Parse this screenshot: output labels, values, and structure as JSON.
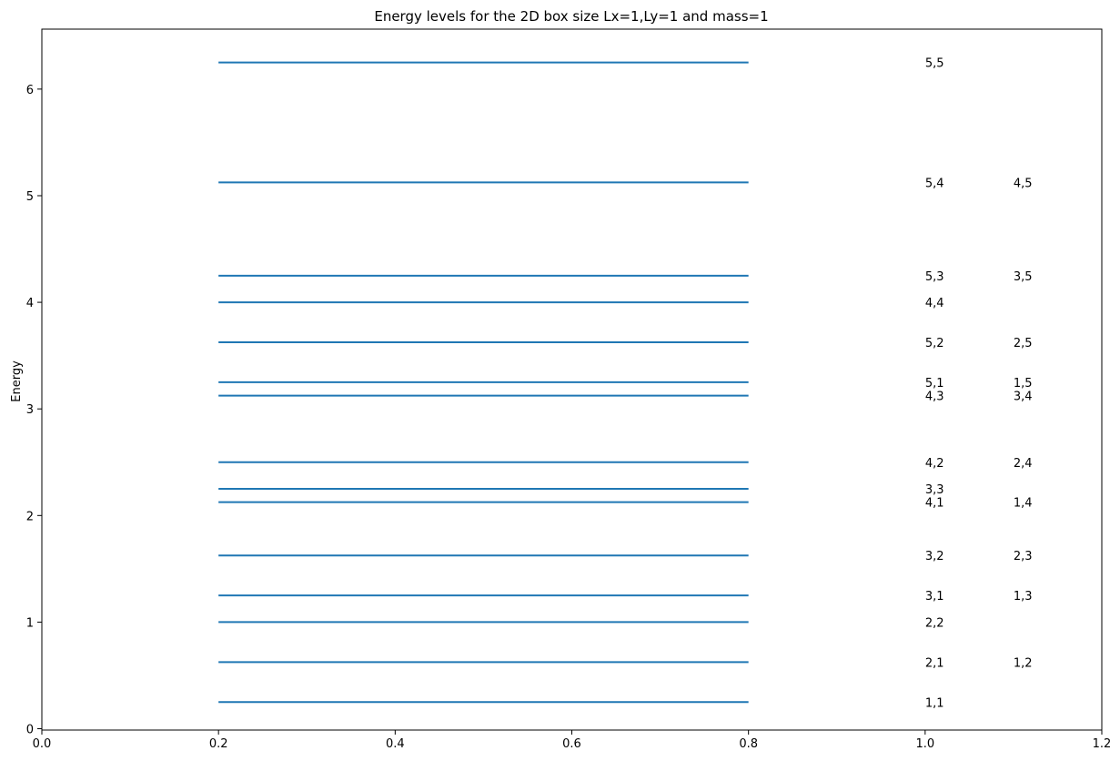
{
  "chart_data": {
    "type": "line",
    "title": "Energy levels for the 2D box size Lx=1,Ly=1 and mass=1",
    "xlabel": "",
    "ylabel": "Energy",
    "xlim": [
      0.0,
      1.2
    ],
    "ylim": [
      -0.0125,
      6.5625
    ],
    "xticks": [
      "0.0",
      "0.2",
      "0.4",
      "0.6",
      "0.8",
      "1.0",
      "1.2"
    ],
    "yticks": [
      "0",
      "1",
      "2",
      "3",
      "4",
      "5",
      "6"
    ],
    "grid": false,
    "line_color": "#1f77b4",
    "level_x_range": [
      0.2,
      0.8
    ],
    "label_x": [
      1.0,
      1.1
    ],
    "levels": [
      {
        "energy": 0.25,
        "labels": [
          "1,1"
        ]
      },
      {
        "energy": 0.625,
        "labels": [
          "2,1",
          "1,2"
        ]
      },
      {
        "energy": 1.0,
        "labels": [
          "2,2"
        ]
      },
      {
        "energy": 1.25,
        "labels": [
          "3,1",
          "1,3"
        ]
      },
      {
        "energy": 1.625,
        "labels": [
          "3,2",
          "2,3"
        ]
      },
      {
        "energy": 2.125,
        "labels": [
          "4,1",
          "1,4"
        ]
      },
      {
        "energy": 2.25,
        "labels": [
          "3,3"
        ]
      },
      {
        "energy": 2.5,
        "labels": [
          "4,2",
          "2,4"
        ]
      },
      {
        "energy": 3.125,
        "labels": [
          "4,3",
          "3,4"
        ]
      },
      {
        "energy": 3.25,
        "labels": [
          "5,1",
          "1,5"
        ]
      },
      {
        "energy": 3.625,
        "labels": [
          "5,2",
          "2,5"
        ]
      },
      {
        "energy": 4.0,
        "labels": [
          "4,4"
        ]
      },
      {
        "energy": 4.25,
        "labels": [
          "5,3",
          "3,5"
        ]
      },
      {
        "energy": 5.125,
        "labels": [
          "5,4",
          "4,5"
        ]
      },
      {
        "energy": 6.25,
        "labels": [
          "5,5"
        ]
      }
    ]
  }
}
